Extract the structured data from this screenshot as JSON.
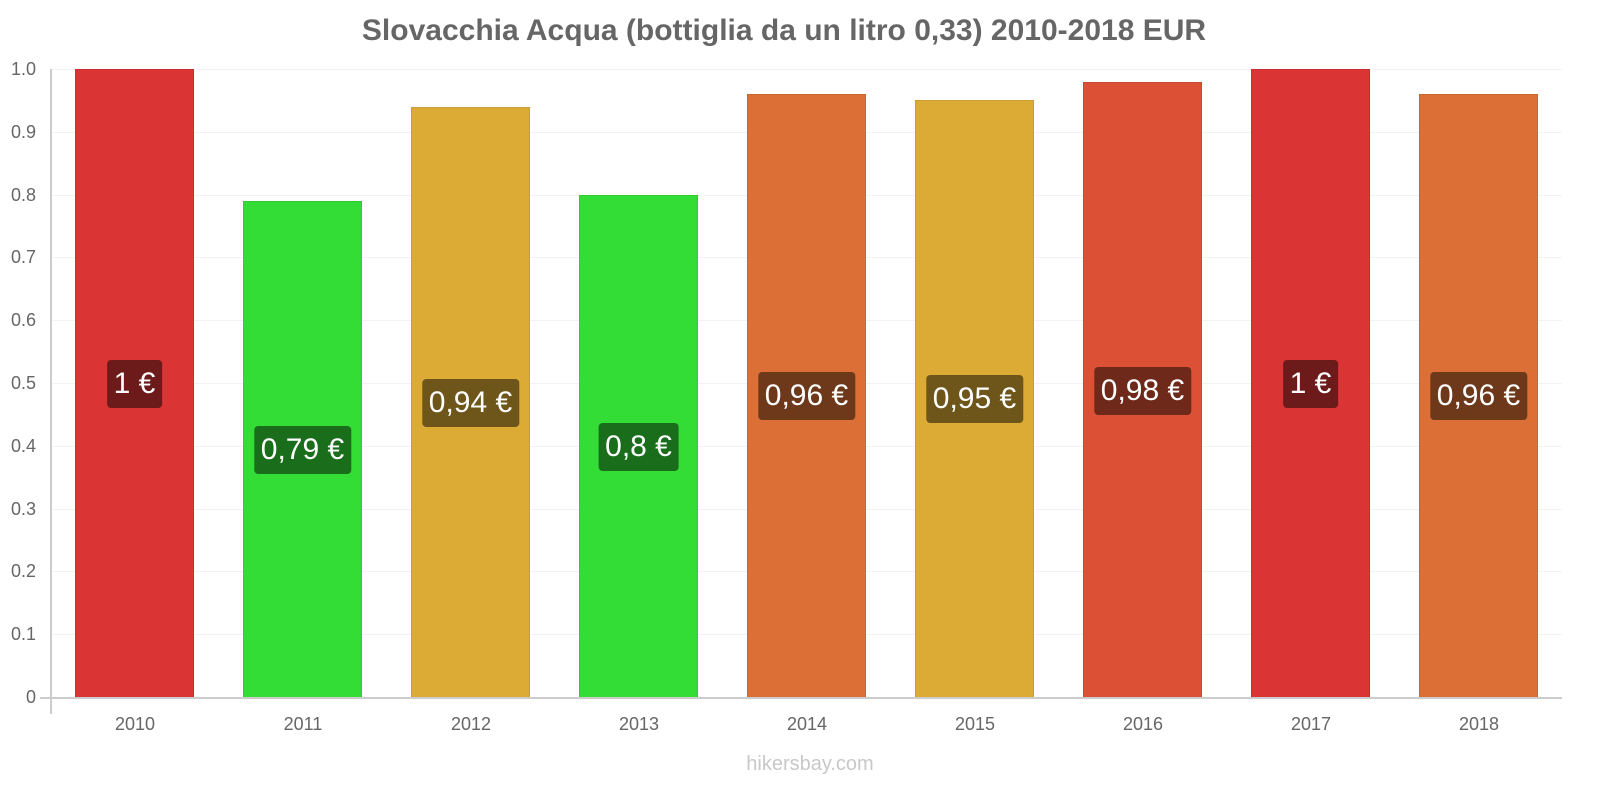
{
  "chart_data": {
    "type": "bar",
    "title": "Slovacchia Acqua (bottiglia da un litro 0,33) 2010-2018 EUR",
    "xlabel": "",
    "ylabel": "",
    "ylim": [
      0,
      1.0
    ],
    "grid": true,
    "legend": null,
    "categories": [
      "2010",
      "2011",
      "2012",
      "2013",
      "2014",
      "2015",
      "2016",
      "2017",
      "2018"
    ],
    "values": [
      1.0,
      0.79,
      0.94,
      0.8,
      0.96,
      0.95,
      0.98,
      1.0,
      0.96
    ],
    "data_labels": [
      "1 €",
      "0,79 €",
      "0,94 €",
      "0,8 €",
      "0,96 €",
      "0,95 €",
      "0,98 €",
      "1 €",
      "0,96 €"
    ],
    "bar_colors": [
      "#da3435",
      "#33dd36",
      "#dcab35",
      "#33dd36",
      "#dc6f35",
      "#dcab35",
      "#dc5135",
      "#da3435",
      "#dc6f35"
    ],
    "label_colors": [
      "#6d1a1a",
      "#1a6e1b",
      "#6e561a",
      "#1a6e1b",
      "#6e381a",
      "#6e561a",
      "#6e291a",
      "#6d1a1a",
      "#6e381a"
    ],
    "y_ticks": [
      "0",
      "0.1",
      "0.2",
      "0.3",
      "0.4",
      "0.5",
      "0.6",
      "0.7",
      "0.8",
      "0.9",
      "1.0"
    ]
  },
  "watermark": "hikersbay.com"
}
